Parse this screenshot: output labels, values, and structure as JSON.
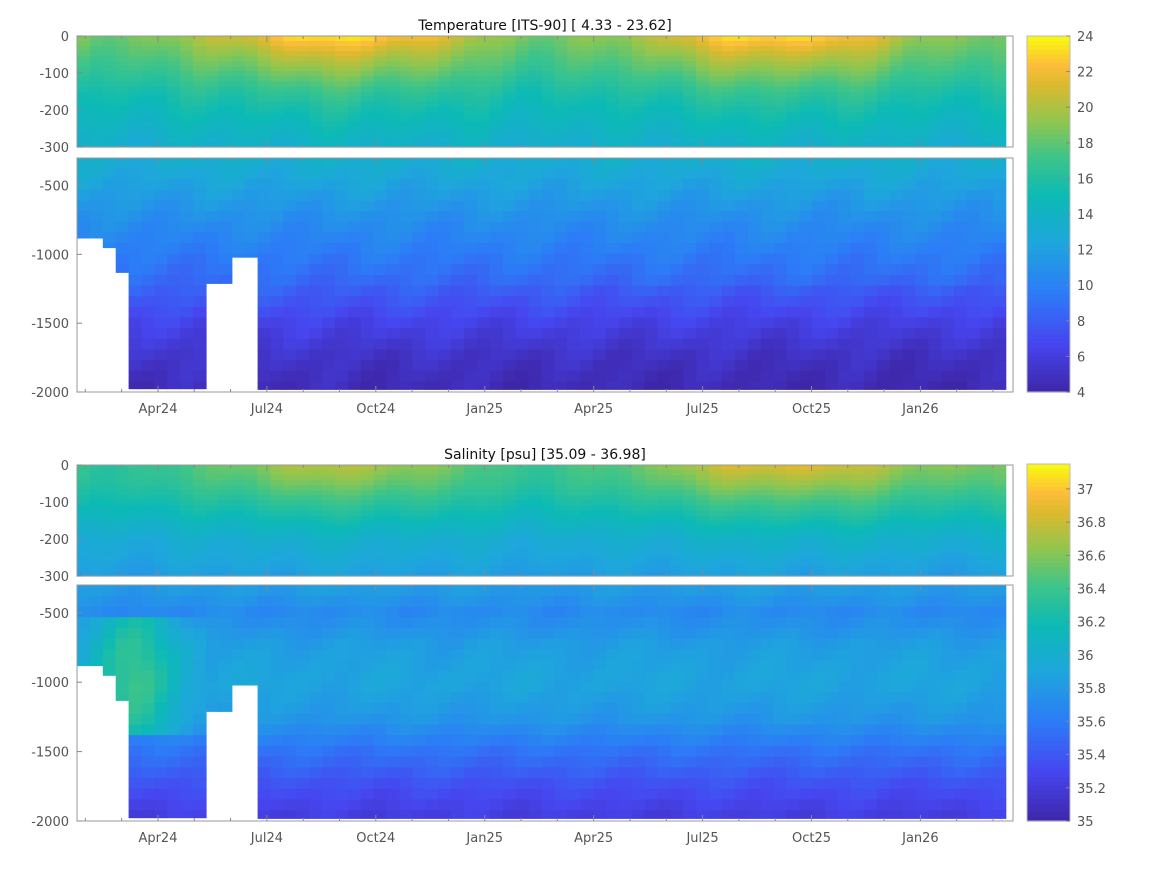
{
  "chart_data": [
    {
      "type": "heatmap",
      "title": "Temperature [ITS-90]   [ 4.33 - 23.62]",
      "variable": "temperature",
      "units": "°C",
      "x_tick_labels": [
        "Apr24",
        "Jul24",
        "Oct24",
        "Jan25",
        "Apr25",
        "Jul25",
        "Oct25",
        "Jan26"
      ],
      "x_tick_months_since_jan2024": [
        3,
        6,
        9,
        12,
        15,
        18,
        21,
        24
      ],
      "xlim_months_since_jan2024": [
        0.77,
        26.55
      ],
      "upper_panel": {
        "ylim": [
          -300,
          0
        ],
        "y_ticks": [
          0,
          -100,
          -200,
          -300
        ],
        "y_tick_labels": [
          "0",
          "-100",
          "-200",
          "-300"
        ]
      },
      "lower_panel": {
        "ylim": [
          -2000,
          -300
        ],
        "y_ticks": [
          -500,
          -1000,
          -1500,
          -2000
        ],
        "y_tick_labels": [
          "-500",
          "-1000",
          "-1500",
          "-2000"
        ]
      },
      "colorbar": {
        "range": [
          4,
          24
        ],
        "ticks": [
          4,
          6,
          8,
          10,
          12,
          14,
          16,
          18,
          20,
          22,
          24
        ],
        "tick_labels": [
          "4",
          "6",
          "8",
          "10",
          "12",
          "14",
          "16",
          "18",
          "20",
          "22",
          "24"
        ]
      },
      "mean_profile": {
        "depth": [
          0,
          50,
          100,
          150,
          200,
          300,
          500,
          750,
          1000,
          1250,
          1500,
          1750,
          2000
        ],
        "value": [
          21,
          19.3,
          17.8,
          16.3,
          15.2,
          13.5,
          12.2,
          10.8,
          9.6,
          8.3,
          6.6,
          5.3,
          4.6
        ]
      },
      "surface_seasonal_amplitude": 2.5,
      "data_max_depth_segments": [
        {
          "t": [
            0.77,
            1.4
          ],
          "max_depth": 880
        },
        {
          "t": [
            1.4,
            1.76
          ],
          "max_depth": 950
        },
        {
          "t": [
            1.76,
            2.12
          ],
          "max_depth": 1130
        },
        {
          "t": [
            2.12,
            4.35
          ],
          "max_depth": 1975
        },
        {
          "t": [
            4.35,
            4.93
          ],
          "max_depth": 1210
        },
        {
          "t": [
            4.93,
            5.62
          ],
          "max_depth": 1020
        },
        {
          "t": [
            5.62,
            26.35
          ],
          "max_depth": 1980
        }
      ]
    },
    {
      "type": "heatmap",
      "title": "Salinity [psu]   [35.09 - 36.98]",
      "variable": "salinity",
      "units": "psu",
      "x_tick_labels": [
        "Apr24",
        "Jul24",
        "Oct24",
        "Jan25",
        "Apr25",
        "Jul25",
        "Oct25",
        "Jan26"
      ],
      "x_tick_months_since_jan2024": [
        3,
        6,
        9,
        12,
        15,
        18,
        21,
        24
      ],
      "xlim_months_since_jan2024": [
        0.77,
        26.55
      ],
      "upper_panel": {
        "ylim": [
          -300,
          0
        ],
        "y_ticks": [
          0,
          -100,
          -200,
          -300
        ],
        "y_tick_labels": [
          "0",
          "-100",
          "-200",
          "-300"
        ]
      },
      "lower_panel": {
        "ylim": [
          -2000,
          -300
        ],
        "y_ticks": [
          -500,
          -1000,
          -1500,
          -2000
        ],
        "y_tick_labels": [
          "-500",
          "-1000",
          "-1500",
          "-2000"
        ]
      },
      "colorbar": {
        "range": [
          35,
          37.15
        ],
        "ticks": [
          35,
          35.2,
          35.4,
          35.6,
          35.8,
          36,
          36.2,
          36.4,
          36.6,
          36.8,
          37
        ],
        "tick_labels": [
          "35",
          "35.2",
          "35.4",
          "35.6",
          "35.8",
          "36",
          "36.2",
          "36.4",
          "36.6",
          "36.8",
          "37"
        ]
      },
      "mean_profile": {
        "depth": [
          0,
          50,
          100,
          150,
          200,
          300,
          500,
          750,
          1000,
          1250,
          1500,
          1750,
          2000
        ],
        "value": [
          36.55,
          36.45,
          36.3,
          36.15,
          36.0,
          35.85,
          35.7,
          35.85,
          35.9,
          35.8,
          35.55,
          35.35,
          35.2
        ]
      },
      "surface_seasonal_amplitude": 0.2,
      "data_max_depth_segments": [
        {
          "t": [
            0.77,
            1.4
          ],
          "max_depth": 880
        },
        {
          "t": [
            1.4,
            1.76
          ],
          "max_depth": 950
        },
        {
          "t": [
            1.76,
            2.12
          ],
          "max_depth": 1130
        },
        {
          "t": [
            2.12,
            4.35
          ],
          "max_depth": 1975
        },
        {
          "t": [
            4.35,
            4.93
          ],
          "max_depth": 1210
        },
        {
          "t": [
            4.93,
            5.62
          ],
          "max_depth": 1020
        },
        {
          "t": [
            5.62,
            26.35
          ],
          "max_depth": 1980
        }
      ]
    }
  ]
}
